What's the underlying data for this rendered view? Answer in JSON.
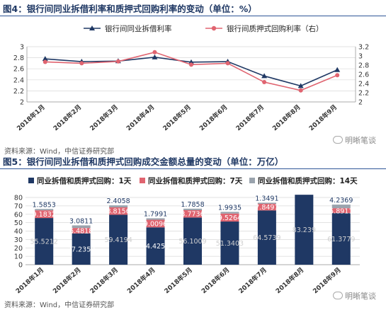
{
  "figure1": {
    "title": "图4：银行间同业拆借利率和质押式回购利率的变动（单位：%）",
    "source": "资料来源：Wind，中信证券研究部",
    "watermark": "明晰笔谈"
  },
  "figure2": {
    "title": "图5：银行间同业拆借和质押式回购成交金额总量的变动（单位：万亿）",
    "source": "资料来源：Wind，中信证券研究部",
    "watermark": "明晰笔谈"
  },
  "chart_data": [
    {
      "type": "line",
      "categories": [
        "2018年1月",
        "2018年2月",
        "2018年3月",
        "2018年4月",
        "2018年5月",
        "2018年6月",
        "2018年7月",
        "2018年8月",
        "2018年9月"
      ],
      "series": [
        {
          "name": "银行间同业拆借利率",
          "axis": "left",
          "color": "#1f3864",
          "marker": "triangle",
          "values": [
            2.78,
            2.73,
            2.74,
            2.81,
            2.72,
            2.73,
            2.47,
            2.29,
            2.58
          ]
        },
        {
          "name": "银行间质押式回购利率（右）",
          "axis": "right",
          "color": "#e06470",
          "marker": "circle",
          "values": [
            2.87,
            2.84,
            2.88,
            3.08,
            2.81,
            2.84,
            2.43,
            2.25,
            2.58
          ]
        }
      ],
      "ylim_left": [
        2,
        3
      ],
      "yticks_left": [
        "2",
        "2.2",
        "2.4",
        "2.6",
        "2.8",
        "3"
      ],
      "ylim_right": [
        2,
        3.2
      ],
      "yticks_right": [
        "2",
        "2.2",
        "2.4",
        "2.6",
        "2.8",
        "3",
        "3.2"
      ],
      "legend": "top",
      "grid": true
    },
    {
      "type": "bar",
      "stacked": true,
      "categories": [
        "2018年1月",
        "2018年2月",
        "2018年3月",
        "2018年4月",
        "2018年5月",
        "2018年6月",
        "2018年7月",
        "2018年8月",
        "2018年9月"
      ],
      "series": [
        {
          "name": "同业拆借和质押式回购：1天",
          "color": "#1f3864",
          "values": [
            55.5212,
            37.2353,
            59.4194,
            44.4253,
            56.1009,
            51.3403,
            64.5739,
            83.239,
            61.3779
          ],
          "labels": [
            "55.5212",
            "37.2353",
            "59.4194",
            "44.4253",
            "56.1009",
            "51.3403",
            "64.5739",
            "83.239",
            "61.3779"
          ]
        },
        {
          "name": "同业拆借和质押式回购：7天",
          "color": "#e06470",
          "values": [
            9.1832,
            6.4818,
            8.8156,
            9.0096,
            8.7736,
            9.5264,
            7.8497,
            0,
            5.8911
          ],
          "labels": [
            "9.1832",
            "6.4818",
            "8.8156",
            "9.0096",
            "8.7736",
            "9.5264",
            "7.8497",
            "",
            "5.8911"
          ]
        },
        {
          "name": "同业拆借和质押式回购：14天",
          "color": "#9aa3ad",
          "values": [
            1.5853,
            3.0811,
            2.4058,
            1.7991,
            1.7858,
            1.9935,
            1.3491,
            0,
            4.2369
          ],
          "labels": [
            "1.5853",
            "3.0811",
            "2.4058",
            "1.7991",
            "1.7858",
            "1.9935",
            "1.3491",
            "",
            "4.2369"
          ]
        }
      ],
      "ylim": [
        0,
        80
      ],
      "yticks": [
        "0",
        "10",
        "20",
        "30",
        "40",
        "50",
        "60",
        "70",
        "80"
      ],
      "legend": "top",
      "grid": true
    }
  ]
}
